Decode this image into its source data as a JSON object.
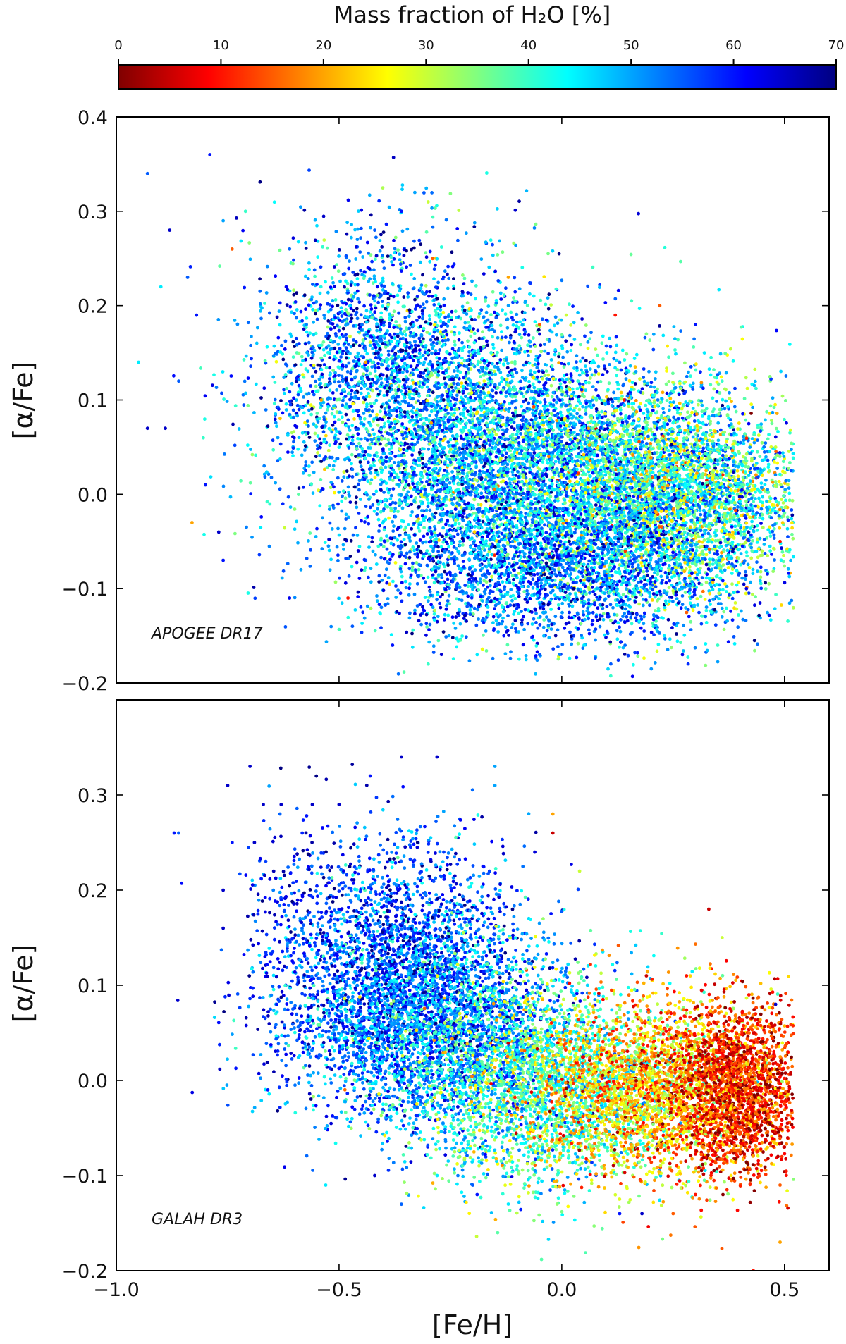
{
  "chart_data": {
    "type": "scatter",
    "colorbar": {
      "title": "Mass fraction of H₂O [%]",
      "range": [
        0,
        70
      ],
      "ticks": [
        0,
        10,
        20,
        30,
        40,
        50,
        60,
        70
      ],
      "tick_labels": [
        "0",
        "10",
        "20",
        "30",
        "40",
        "50",
        "60",
        "70"
      ],
      "colormap": "jet_r",
      "stops": [
        "#800000",
        "#ff0000",
        "#ff8000",
        "#ffff00",
        "#80ff80",
        "#00ffff",
        "#0080ff",
        "#0000ff",
        "#000080"
      ]
    },
    "xlabel": "[Fe/H]",
    "xlim": [
      -1.0,
      0.6
    ],
    "x_ticks": [
      -1.0,
      -0.5,
      0.0,
      0.5
    ],
    "x_tick_labels": [
      "−1.0",
      "−0.5",
      "0.0",
      "0.5"
    ],
    "panels": [
      {
        "annotation": "APOGEE DR17",
        "ylabel": "[α/Fe]",
        "ylim": [
          -0.2,
          0.4
        ],
        "y_ticks": [
          -0.2,
          -0.1,
          0.0,
          0.1,
          0.2,
          0.3,
          0.4
        ],
        "y_tick_labels": [
          "−0.2",
          "−0.1",
          "0.0",
          "0.1",
          "0.2",
          "0.3",
          "0.4"
        ],
        "points": [
          [
            -0.93,
            0.34,
            55
          ],
          [
            -0.79,
            0.36,
            60
          ],
          [
            -0.88,
            0.28,
            65
          ],
          [
            -0.9,
            0.22,
            45
          ],
          [
            -0.95,
            0.14,
            45
          ],
          [
            -0.93,
            0.07,
            65
          ],
          [
            -0.89,
            0.07,
            65
          ],
          [
            -0.86,
            0.12,
            55
          ],
          [
            -0.84,
            0.23,
            55
          ],
          [
            -0.82,
            0.19,
            60
          ],
          [
            -0.76,
            0.29,
            50
          ],
          [
            -0.71,
            0.3,
            40
          ],
          [
            -0.74,
            0.26,
            15
          ],
          [
            -0.83,
            -0.03,
            20
          ],
          [
            -0.77,
            -0.04,
            65
          ],
          [
            -0.76,
            -0.07,
            60
          ],
          [
            -0.8,
            0.01,
            60
          ],
          [
            -0.42,
            0.28,
            55
          ],
          [
            -0.33,
            0.32,
            50
          ],
          [
            -0.3,
            0.31,
            30
          ],
          [
            -0.36,
            0.3,
            60
          ],
          [
            -0.12,
            0.23,
            20
          ],
          [
            -0.05,
            0.18,
            15
          ],
          [
            0.01,
            0.19,
            30
          ],
          [
            0.12,
            0.19,
            10
          ],
          [
            0.22,
            0.2,
            15
          ],
          [
            0.19,
            0.17,
            35
          ],
          [
            0.32,
            0.15,
            45
          ],
          [
            0.36,
            0.12,
            40
          ],
          [
            0.48,
            0.05,
            30
          ],
          [
            0.49,
            -0.05,
            10
          ],
          [
            0.48,
            -0.02,
            55
          ],
          [
            0.45,
            0.02,
            25
          ],
          [
            0.36,
            -0.13,
            50
          ],
          [
            0.35,
            -0.16,
            40
          ],
          [
            0.23,
            -0.15,
            45
          ],
          [
            0.11,
            -0.18,
            55
          ],
          [
            0.05,
            -0.16,
            45
          ],
          [
            -0.05,
            -0.17,
            55
          ],
          [
            -0.13,
            -0.15,
            60
          ],
          [
            -0.19,
            -0.17,
            45
          ],
          [
            -0.3,
            -0.18,
            40
          ],
          [
            -0.38,
            -0.16,
            60
          ],
          [
            -0.47,
            -0.14,
            55
          ],
          [
            -0.44,
            0.14,
            20
          ],
          [
            -0.54,
            0.1,
            20
          ],
          [
            -0.48,
            -0.11,
            10
          ],
          [
            -0.29,
            0.25,
            15
          ],
          [
            0.06,
            0.07,
            20
          ],
          [
            0.3,
            0.18,
            60
          ],
          [
            0.14,
            0.1,
            10
          ]
        ],
        "clusters": [
          {
            "cx": -0.3,
            "cy": 0.1,
            "sx": 0.18,
            "sy": 0.075,
            "n": 2600,
            "cmean": 50,
            "csd": 10
          },
          {
            "cx": -0.05,
            "cy": 0.02,
            "sx": 0.2,
            "sy": 0.065,
            "n": 4200,
            "cmean": 48,
            "csd": 10
          },
          {
            "cx": 0.25,
            "cy": 0.0,
            "sx": 0.15,
            "sy": 0.055,
            "n": 3600,
            "cmean": 40,
            "csd": 11
          },
          {
            "cx": 0.0,
            "cy": -0.08,
            "sx": 0.22,
            "sy": 0.04,
            "n": 2000,
            "cmean": 54,
            "csd": 8
          },
          {
            "cx": -0.45,
            "cy": 0.15,
            "sx": 0.12,
            "sy": 0.07,
            "n": 700,
            "cmean": 55,
            "csd": 10
          }
        ]
      },
      {
        "annotation": "GALAH DR3",
        "ylabel": "[α/Fe]",
        "ylim": [
          -0.2,
          0.4
        ],
        "y_ticks": [
          -0.2,
          -0.1,
          0.0,
          0.1,
          0.2,
          0.3
        ],
        "y_tick_labels": [
          "−0.2",
          "−0.1",
          "0.0",
          "0.1",
          "0.2",
          "0.3"
        ],
        "points": [
          [
            -0.86,
            0.26,
            55
          ],
          [
            -0.87,
            0.26,
            60
          ],
          [
            -0.75,
            0.31,
            65
          ],
          [
            -0.7,
            0.33,
            65
          ],
          [
            -0.67,
            0.29,
            65
          ],
          [
            -0.63,
            0.29,
            65
          ],
          [
            -0.56,
            0.29,
            65
          ],
          [
            -0.5,
            0.29,
            65
          ],
          [
            -0.43,
            0.32,
            60
          ],
          [
            -0.36,
            0.34,
            65
          ],
          [
            -0.28,
            0.34,
            65
          ],
          [
            -0.15,
            0.33,
            50
          ],
          [
            -0.15,
            0.31,
            50
          ],
          [
            -0.74,
            0.25,
            60
          ],
          [
            -0.76,
            0.2,
            65
          ],
          [
            -0.76,
            0.16,
            65
          ],
          [
            -0.69,
            0.25,
            65
          ],
          [
            -0.64,
            0.08,
            60
          ],
          [
            -0.42,
            -0.1,
            65
          ],
          [
            -0.19,
            -0.12,
            60
          ],
          [
            -0.28,
            -0.1,
            45
          ],
          [
            -0.2,
            -0.11,
            55
          ],
          [
            0.13,
            -0.14,
            60
          ],
          [
            0.18,
            -0.14,
            65
          ],
          [
            -0.02,
            0.28,
            20
          ],
          [
            -0.02,
            0.26,
            5
          ],
          [
            0.04,
            0.22,
            30
          ],
          [
            0.33,
            0.18,
            5
          ],
          [
            0.36,
            0.15,
            30
          ],
          [
            0.28,
            0.11,
            10
          ],
          [
            0.19,
            0.11,
            5
          ],
          [
            0.42,
            0.09,
            10
          ],
          [
            0.48,
            0.08,
            65
          ],
          [
            0.47,
            0.06,
            5
          ],
          [
            0.49,
            -0.17,
            20
          ],
          [
            0.43,
            -0.2,
            10
          ],
          [
            0.49,
            -0.11,
            15
          ],
          [
            0.5,
            -0.07,
            5
          ],
          [
            0.3,
            -0.12,
            10
          ],
          [
            0.38,
            -0.1,
            25
          ],
          [
            0.25,
            -0.14,
            15
          ],
          [
            -0.53,
            -0.11,
            45
          ],
          [
            -0.12,
            -0.13,
            45
          ]
        ],
        "clusters": [
          {
            "cx": -0.35,
            "cy": 0.12,
            "sx": 0.13,
            "sy": 0.065,
            "n": 2600,
            "cmean": 56,
            "csd": 8
          },
          {
            "cx": -0.3,
            "cy": 0.05,
            "sx": 0.15,
            "sy": 0.05,
            "n": 2200,
            "cmean": 52,
            "csd": 8
          },
          {
            "cx": -0.05,
            "cy": 0.0,
            "sx": 0.14,
            "sy": 0.055,
            "n": 2600,
            "cmean": 40,
            "csd": 9
          },
          {
            "cx": 0.22,
            "cy": -0.01,
            "sx": 0.13,
            "sy": 0.045,
            "n": 2700,
            "cmean": 22,
            "csd": 9
          },
          {
            "cx": 0.4,
            "cy": -0.01,
            "sx": 0.07,
            "sy": 0.045,
            "n": 1800,
            "cmean": 10,
            "csd": 7
          },
          {
            "cx": -0.6,
            "cy": 0.15,
            "sx": 0.06,
            "sy": 0.07,
            "n": 250,
            "cmean": 60,
            "csd": 6
          }
        ]
      }
    ]
  }
}
